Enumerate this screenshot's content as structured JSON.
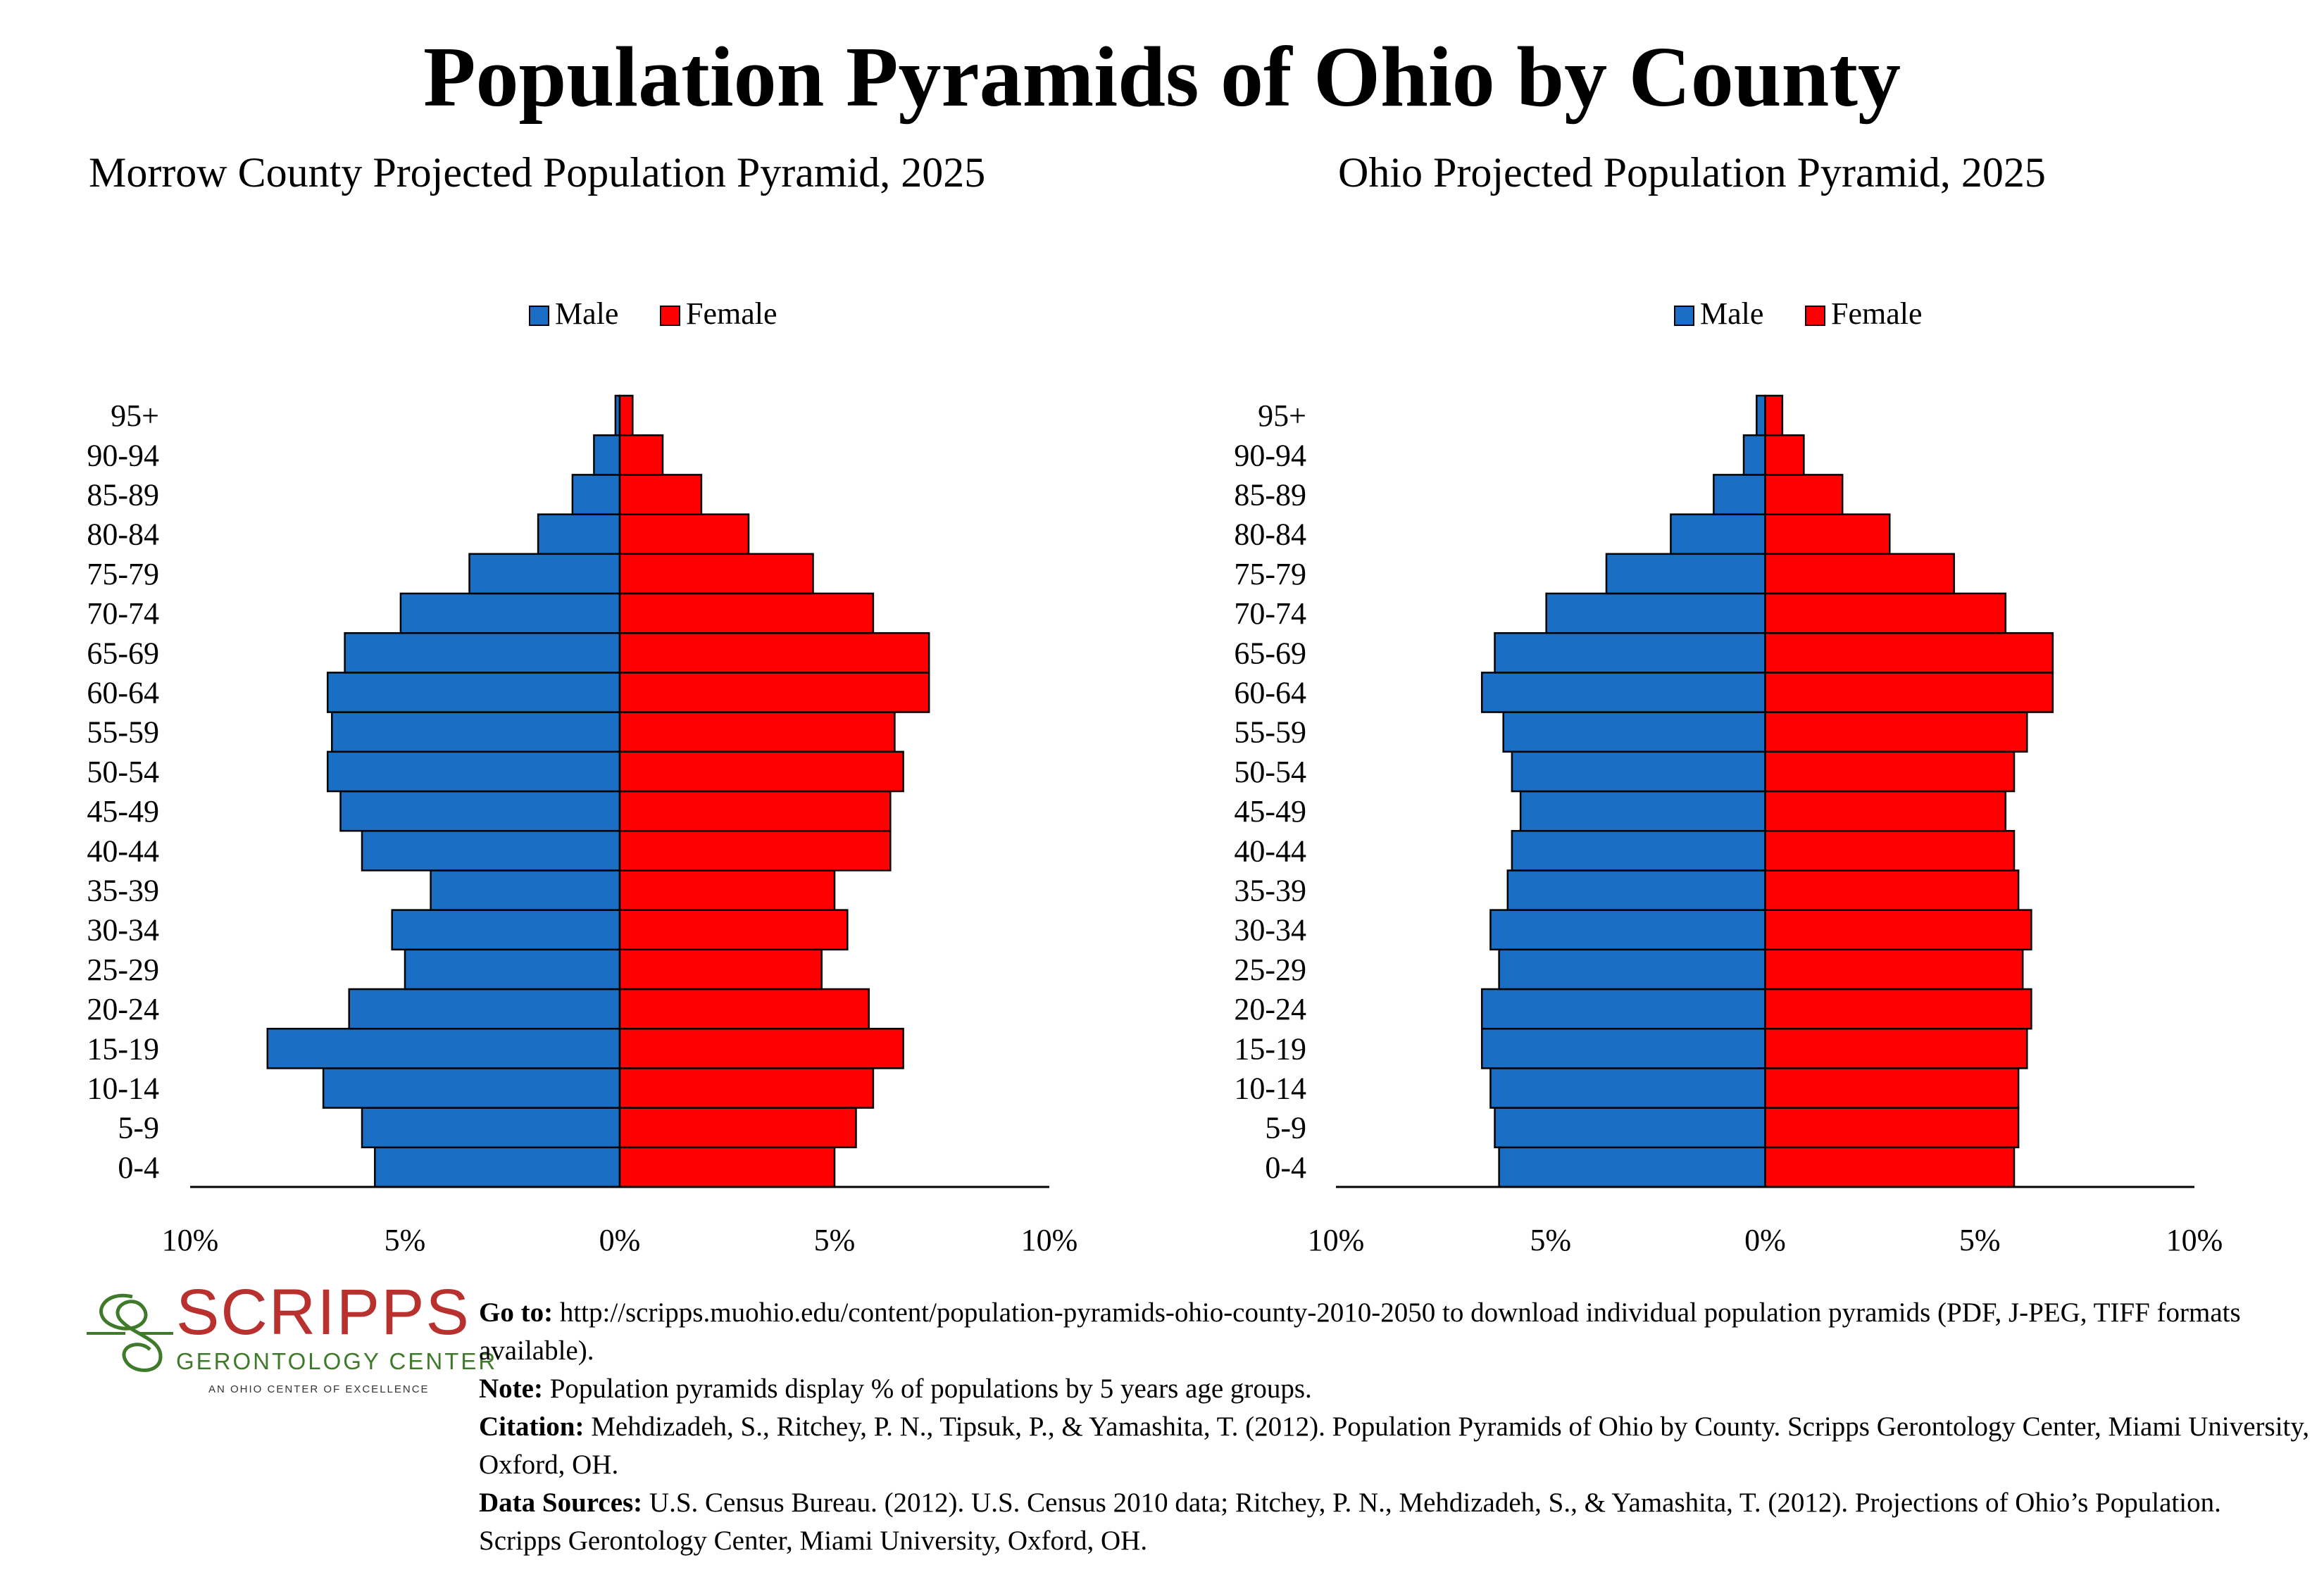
{
  "title": "Population Pyramids of Ohio by County",
  "legend": {
    "male": "Male",
    "female": "Female"
  },
  "colors": {
    "male": "#1a6fc4",
    "female": "#ff0000",
    "outline": "#000000"
  },
  "chart_data": [
    {
      "type": "bar",
      "orientation": "horizontal-pyramid",
      "title": "Morrow County Projected Population Pyramid, 2025",
      "categories": [
        "0-4",
        "5-9",
        "10-14",
        "15-19",
        "20-24",
        "25-29",
        "30-34",
        "35-39",
        "40-44",
        "45-49",
        "50-54",
        "55-59",
        "60-64",
        "65-69",
        "70-74",
        "75-79",
        "80-84",
        "85-89",
        "90-94",
        "95+"
      ],
      "series": [
        {
          "name": "Male",
          "values": [
            5.7,
            6.0,
            6.9,
            8.2,
            6.3,
            5.0,
            5.3,
            4.4,
            6.0,
            6.5,
            6.8,
            6.7,
            6.8,
            6.4,
            5.1,
            3.5,
            1.9,
            1.1,
            0.6,
            0.1
          ]
        },
        {
          "name": "Female",
          "values": [
            5.0,
            5.5,
            5.9,
            6.6,
            5.8,
            4.7,
            5.3,
            5.0,
            6.3,
            6.3,
            6.6,
            6.4,
            7.2,
            7.2,
            5.9,
            4.5,
            3.0,
            1.9,
            1.0,
            0.3
          ]
        }
      ],
      "xlim": [
        -10,
        10
      ],
      "tick_labels": [
        "10%",
        "5%",
        "0%",
        "5%",
        "10%"
      ],
      "legend_position": "top"
    },
    {
      "type": "bar",
      "orientation": "horizontal-pyramid",
      "title": "Ohio Projected Population Pyramid, 2025",
      "categories": [
        "0-4",
        "5-9",
        "10-14",
        "15-19",
        "20-24",
        "25-29",
        "30-34",
        "35-39",
        "40-44",
        "45-49",
        "50-54",
        "55-59",
        "60-64",
        "65-69",
        "70-74",
        "75-79",
        "80-84",
        "85-89",
        "90-94",
        "95+"
      ],
      "series": [
        {
          "name": "Male",
          "values": [
            6.2,
            6.3,
            6.4,
            6.6,
            6.6,
            6.2,
            6.4,
            6.0,
            5.9,
            5.7,
            5.9,
            6.1,
            6.6,
            6.3,
            5.1,
            3.7,
            2.2,
            1.2,
            0.5,
            0.2
          ]
        },
        {
          "name": "Female",
          "values": [
            5.8,
            5.9,
            5.9,
            6.1,
            6.2,
            6.0,
            6.2,
            5.9,
            5.8,
            5.6,
            5.8,
            6.1,
            6.7,
            6.7,
            5.6,
            4.4,
            2.9,
            1.8,
            0.9,
            0.4
          ]
        }
      ],
      "xlim": [
        -10,
        10
      ],
      "tick_labels": [
        "10%",
        "5%",
        "0%",
        "5%",
        "10%"
      ],
      "legend_position": "top"
    }
  ],
  "logo": {
    "word": "SCRIPPS",
    "subtitle": "GERONTOLOGY CENTER",
    "tagline": "AN OHIO CENTER OF EXCELLENCE"
  },
  "notes": {
    "goto_label": "Go to:",
    "goto_text": " http://scripps.muohio.edu/content/population-pyramids-ohio-county-2010-2050 to download individual population pyramids (PDF, J-PEG, TIFF formats available).",
    "note_label": "Note:",
    "note_text": " Population pyramids display % of populations by 5 years age groups.",
    "citation_label": "Citation:",
    "citation_text": " Mehdizadeh, S., Ritchey, P. N., Tipsuk, P., & Yamashita, T. (2012). Population Pyramids of Ohio by County. Scripps Gerontology Center, Miami University, Oxford, OH.",
    "sources_label": "Data Sources:",
    "sources_text": " U.S. Census Bureau. (2012). U.S. Census 2010 data; Ritchey, P. N., Mehdizadeh, S., & Yamashita, T. (2012). Projections of Ohio’s Population. Scripps Gerontology Center, Miami University, Oxford, OH."
  }
}
